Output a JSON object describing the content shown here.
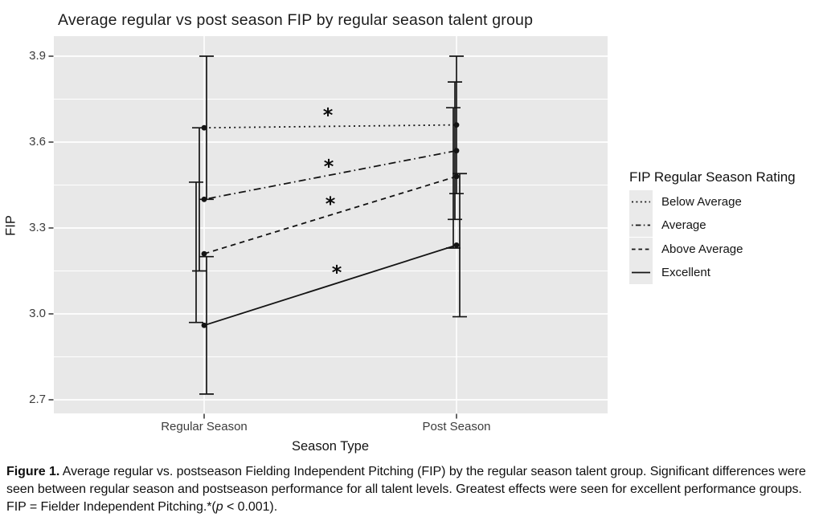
{
  "chart_data": {
    "type": "line",
    "title": "Average regular vs post season FIP by regular season talent group",
    "xlabel": "Season Type",
    "ylabel": "FIP",
    "categories": [
      "Regular Season",
      "Post Season"
    ],
    "yticks": [
      "2.7",
      "3.0",
      "3.3",
      "3.6",
      "3.9"
    ],
    "minor_gridlines": [
      2.85,
      3.15,
      3.45,
      3.75
    ],
    "ylim": [
      2.655,
      3.975
    ],
    "grid": "on",
    "legend_position": "right",
    "legend_title": "FIP Regular Season Rating",
    "series": [
      {
        "name": "Below Average",
        "linestyle": "dotted",
        "values": [
          3.65,
          3.66
        ],
        "ci_low": [
          3.4,
          3.42
        ],
        "ci_high": [
          3.9,
          3.9
        ]
      },
      {
        "name": "Average",
        "linestyle": "dotdash",
        "values": [
          3.4,
          3.57
        ],
        "ci_low": [
          3.15,
          3.33
        ],
        "ci_high": [
          3.65,
          3.81
        ]
      },
      {
        "name": "Above Average",
        "linestyle": "dashed",
        "values": [
          3.21,
          3.48
        ],
        "ci_low": [
          2.97,
          3.23
        ],
        "ci_high": [
          3.46,
          3.72
        ]
      },
      {
        "name": "Excellent",
        "linestyle": "solid",
        "values": [
          2.96,
          3.24
        ],
        "ci_low": [
          2.72,
          2.99
        ],
        "ci_high": [
          3.2,
          3.49
        ]
      }
    ],
    "significance_markers": [
      {
        "symbol": "*",
        "fip": 3.7,
        "series": "Below Average"
      },
      {
        "symbol": "*",
        "fip": 3.52,
        "series": "Average"
      },
      {
        "symbol": "*",
        "fip": 3.39,
        "series": "Above Average"
      },
      {
        "symbol": "*",
        "fip": 3.15,
        "series": "Excellent"
      }
    ],
    "colors": {
      "panel_bg": "#e8e8e8",
      "gridline": "#ffffff",
      "line": "#141414",
      "tick_text": "#3d3d3d",
      "text": "#141414"
    }
  },
  "caption": {
    "segments": [
      {
        "text": "Figure 1.",
        "bold": true,
        "italic": false
      },
      {
        "text": " Average regular vs. postseason Fielding Independent Pitching (FIP) by the regular season talent group. Significant differences were seen between regular season and postseason performance for all talent levels. Greatest effects were seen for excellent performance groups. FIP = Fielder Independent Pitching.*(",
        "bold": false,
        "italic": false
      },
      {
        "text": "p",
        "bold": false,
        "italic": true
      },
      {
        "text": " < 0.001).",
        "bold": false,
        "italic": false
      }
    ]
  }
}
